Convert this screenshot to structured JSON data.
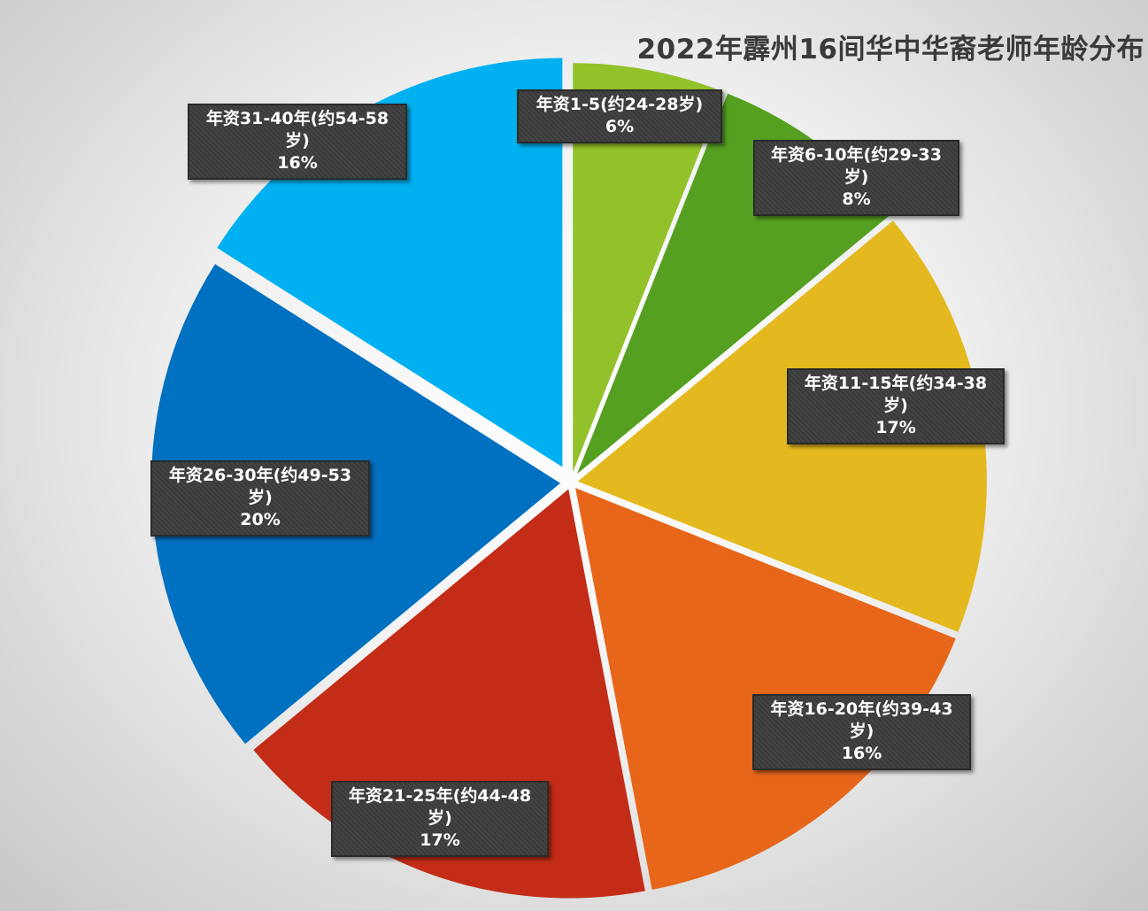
{
  "chart_data": {
    "type": "pie",
    "title": "2022年霹州16间华中华裔老师年龄分布",
    "slices": [
      {
        "label": "年资1-5(约24-28岁)",
        "value": 6,
        "display": "6%",
        "color": "#92c22a"
      },
      {
        "label": "年资6-10年(约29-33岁)",
        "value": 8,
        "display": "8%",
        "color": "#56a021"
      },
      {
        "label": "年资11-15年(约34-38岁)",
        "value": 17,
        "display": "17%",
        "color": "#e4b91f"
      },
      {
        "label": "年资16-20年(约39-43岁)",
        "value": 16,
        "display": "16%",
        "color": "#e76619"
      },
      {
        "label": "年资21-25年(约44-48岁)",
        "value": 17,
        "display": "17%",
        "color": "#c32d17"
      },
      {
        "label": "年资26-30年(约49-53岁)",
        "value": 20,
        "display": "20%",
        "color": "#0070c0"
      },
      {
        "label": "年资31-40年(约54-58岁)",
        "value": 16,
        "display": "16%",
        "color": "#00b0f0"
      }
    ],
    "legend": "none",
    "data_labels": true
  }
}
